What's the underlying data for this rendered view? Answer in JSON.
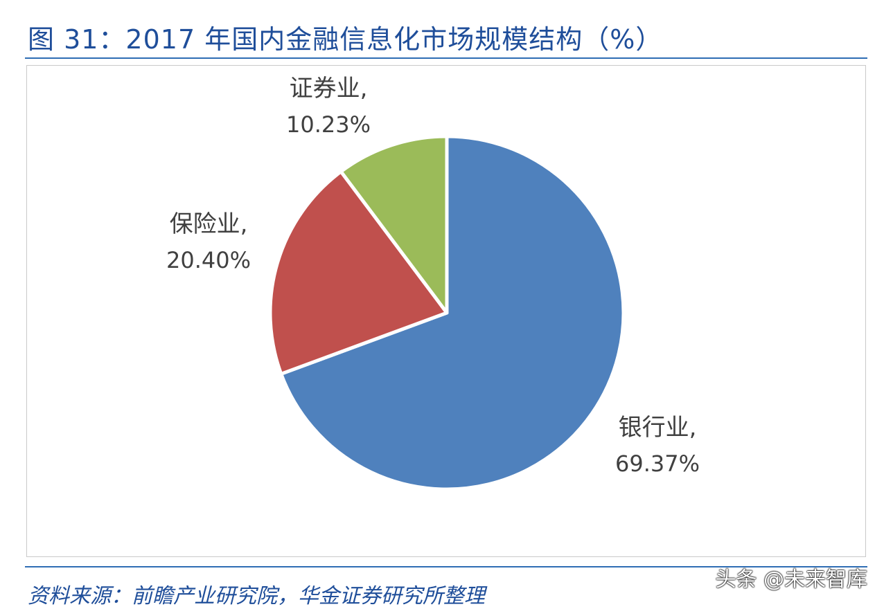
{
  "figure": {
    "title": "图 31：2017 年国内金融信息化市场规模结构（%）",
    "source": "资料来源：前瞻产业研究院，华金证券研究所整理",
    "watermark": "头条 @未来智库"
  },
  "chart_data": {
    "type": "pie",
    "start_angle_deg": 0,
    "direction": "clockwise",
    "slices": [
      {
        "label": "银行业,",
        "percent_label": "69.37%",
        "value": 69.37,
        "color": "#4f81bd"
      },
      {
        "label": "保险业,",
        "percent_label": "20.40%",
        "value": 20.4,
        "color": "#c0504d"
      },
      {
        "label": "证券业,",
        "percent_label": "10.23%",
        "value": 10.23,
        "color": "#9bbb59"
      }
    ],
    "legend": "none"
  }
}
